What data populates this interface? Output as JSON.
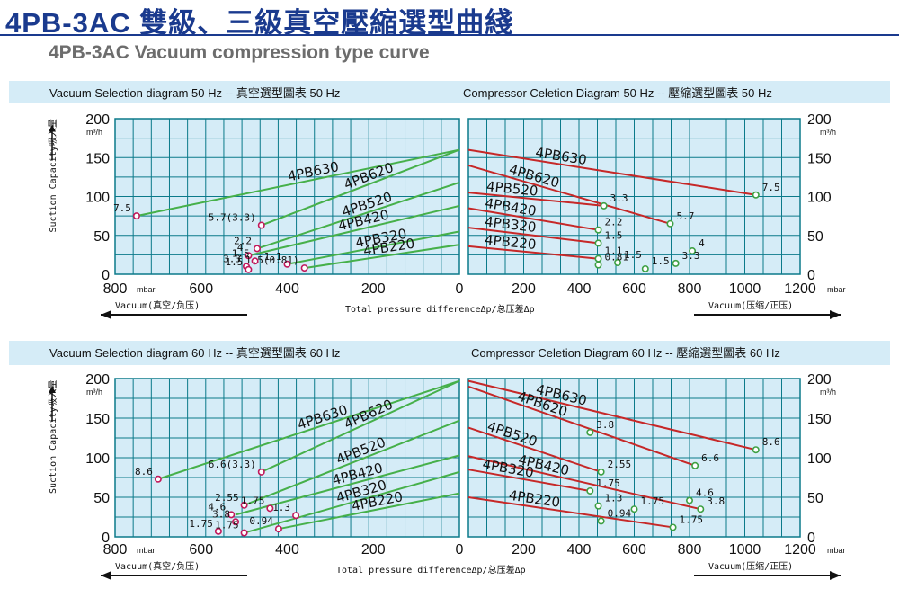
{
  "page": {
    "title": "4PB-3AC 雙級、三級真空壓縮選型曲綫",
    "subtitle": "4PB-3AC Vacuum compression type curve",
    "ylabel": "Suction Capacity吸入量",
    "xunit": "mbar",
    "yunit": "m³/h",
    "vacuum_label": "Vacuum(真空/负压)",
    "pressure_label": "Vacuum(压缩/正压)",
    "xaxis_label": "Total pressure differenceΔp/总压差Δp",
    "colors": {
      "accent": "#1a3a8e",
      "panel": "#d5ecf7",
      "grid": "#0b7a8a",
      "vacuum_curve": "#46b04a",
      "compress_curve": "#c62828",
      "vacuum_marker": "#c2185b",
      "compress_marker": "#3ea043"
    }
  },
  "chart_data": [
    {
      "type": "line",
      "title": "Vacuum Selection diagram 50 Hz -- 真空選型圖表 50 Hz",
      "xlabel": "Total pressure differenceΔp/总压差Δp",
      "ylabel": "Suction Capacity吸入量",
      "xlim": [
        800,
        0
      ],
      "ylim": [
        0,
        200
      ],
      "yticks": [
        0,
        50,
        100,
        150,
        200
      ],
      "xticks": [
        800,
        600,
        400,
        200,
        0
      ],
      "grid": true,
      "series": [
        {
          "name": "4PB630",
          "points": [
            [
              750,
              75
            ],
            [
              0,
              160
            ]
          ]
        },
        {
          "name": "4PB620",
          "points": [
            [
              460,
              63
            ],
            [
              0,
              160
            ]
          ]
        },
        {
          "name": "4PB520",
          "points": [
            [
              470,
              33
            ],
            [
              0,
              118
            ]
          ]
        },
        {
          "name": "4PB420",
          "points": [
            [
              490,
              24
            ],
            [
              0,
              88
            ]
          ]
        },
        {
          "name": "4PB320",
          "points": [
            [
              400,
              13
            ],
            [
              0,
              55
            ]
          ]
        },
        {
          "name": "4PB220",
          "points": [
            [
              360,
              8
            ],
            [
              0,
              38
            ]
          ]
        }
      ],
      "points": [
        {
          "x": 750,
          "y": 75,
          "label": "7.5"
        },
        {
          "x": 460,
          "y": 63,
          "label": "5.7(3.3)"
        },
        {
          "x": 470,
          "y": 33,
          "label": "2.2"
        },
        {
          "x": 490,
          "y": 24,
          "label": "4"
        },
        {
          "x": 475,
          "y": 17,
          "label": "1.5"
        },
        {
          "x": 400,
          "y": 13,
          "label": "1.1"
        },
        {
          "x": 495,
          "y": 10,
          "label": "3.3"
        },
        {
          "x": 360,
          "y": 8,
          "label": "1.5(0.81)"
        },
        {
          "x": 490,
          "y": 6,
          "label": "1.5"
        }
      ],
      "series_labels": [
        "4PB630",
        "4PB620",
        "4PB520",
        "4PB420",
        "4PB320",
        "4PB220"
      ]
    },
    {
      "type": "line",
      "title": "Compressor Celetion Diagram 50 Hz -- 壓縮選型圖表 50 Hz",
      "xlabel": "Vacuum(压缩/正压)",
      "xunit": "mbar",
      "xlim": [
        0,
        1200
      ],
      "ylim": [
        0,
        200
      ],
      "xticks": [
        0,
        200,
        400,
        600,
        800,
        1000,
        1200
      ],
      "yticks": [
        0,
        50,
        100,
        150,
        200
      ],
      "grid": true,
      "series": [
        {
          "name": "4PB630",
          "points": [
            [
              0,
              160
            ],
            [
              1040,
              102
            ]
          ]
        },
        {
          "name": "4PB620",
          "points": [
            [
              0,
              140
            ],
            [
              730,
              65
            ]
          ]
        },
        {
          "name": "4PB520",
          "points": [
            [
              0,
              105
            ],
            [
              490,
              88
            ]
          ]
        },
        {
          "name": "4PB420",
          "points": [
            [
              0,
              85
            ],
            [
              470,
              57
            ]
          ]
        },
        {
          "name": "4PB320",
          "points": [
            [
              0,
              60
            ],
            [
              470,
              40
            ]
          ]
        },
        {
          "name": "4PB220",
          "points": [
            [
              0,
              36
            ],
            [
              470,
              20
            ]
          ]
        }
      ],
      "points": [
        {
          "x": 1040,
          "y": 102,
          "label": "7.5"
        },
        {
          "x": 730,
          "y": 65,
          "label": "5.7"
        },
        {
          "x": 490,
          "y": 88,
          "label": "3.3"
        },
        {
          "x": 470,
          "y": 57,
          "label": "2.2"
        },
        {
          "x": 470,
          "y": 40,
          "label": "1.5"
        },
        {
          "x": 470,
          "y": 20,
          "label": "1.1"
        },
        {
          "x": 540,
          "y": 15,
          "label": "1.5"
        },
        {
          "x": 640,
          "y": 7,
          "label": "1.5"
        },
        {
          "x": 470,
          "y": 12,
          "label": "0.81"
        },
        {
          "x": 810,
          "y": 30,
          "label": "4"
        },
        {
          "x": 750,
          "y": 14,
          "label": "3.3"
        }
      ]
    },
    {
      "type": "line",
      "title": "Vacuum Selection diagram 60 Hz -- 真空選型圖表 60 Hz",
      "xlim": [
        800,
        0
      ],
      "ylim": [
        0,
        200
      ],
      "xticks": [
        800,
        600,
        400,
        200,
        0
      ],
      "yticks": [
        0,
        50,
        100,
        150,
        200
      ],
      "grid": true,
      "series": [
        {
          "name": "4PB630",
          "points": [
            [
              700,
              73
            ],
            [
              0,
              197
            ]
          ]
        },
        {
          "name": "4PB620",
          "points": [
            [
              460,
              82
            ],
            [
              0,
              197
            ]
          ]
        },
        {
          "name": "4PB520",
          "points": [
            [
              500,
              40
            ],
            [
              0,
              147
            ]
          ]
        },
        {
          "name": "4PB420",
          "points": [
            [
              520,
              28
            ],
            [
              0,
              103
            ]
          ]
        },
        {
          "name": "4PB320",
          "points": [
            [
              500,
              5
            ],
            [
              0,
              82
            ]
          ]
        },
        {
          "name": "4PB220",
          "points": [
            [
              420,
              10
            ],
            [
              0,
              55
            ]
          ]
        }
      ],
      "points": [
        {
          "x": 700,
          "y": 73,
          "label": "8.6"
        },
        {
          "x": 460,
          "y": 82,
          "label": "6.6(3.3)"
        },
        {
          "x": 500,
          "y": 40,
          "label": "2.55"
        },
        {
          "x": 530,
          "y": 28,
          "label": "4.6"
        },
        {
          "x": 520,
          "y": 19,
          "label": "3.8"
        },
        {
          "x": 440,
          "y": 36,
          "label": "1.75"
        },
        {
          "x": 380,
          "y": 27,
          "label": "1.3"
        },
        {
          "x": 560,
          "y": 7,
          "label": "1.75"
        },
        {
          "x": 500,
          "y": 5,
          "label": "1.75"
        },
        {
          "x": 420,
          "y": 10,
          "label": "0.94"
        }
      ],
      "series_labels": [
        "4PB630",
        "4PB620",
        "4PB520",
        "4PB420",
        "4PB320",
        "4PB220"
      ]
    },
    {
      "type": "line",
      "title": "Compressor Celetion Diagram 60 Hz -- 壓縮選型圖表 60 Hz",
      "xlabel": "Vacuum(压缩/正压)",
      "xunit": "mbar",
      "xlim": [
        0,
        1200
      ],
      "ylim": [
        0,
        200
      ],
      "xticks": [
        0,
        200,
        400,
        600,
        800,
        1000,
        1200
      ],
      "yticks": [
        0,
        50,
        100,
        150,
        200
      ],
      "grid": true,
      "series": [
        {
          "name": "4PB630",
          "points": [
            [
              0,
              197
            ],
            [
              1040,
              110
            ]
          ]
        },
        {
          "name": "4PB620",
          "points": [
            [
              0,
              190
            ],
            [
              820,
              90
            ]
          ]
        },
        {
          "name": "4PB520",
          "points": [
            [
              0,
              138
            ],
            [
              480,
              82
            ]
          ]
        },
        {
          "name": "4PB420",
          "points": [
            [
              0,
              102
            ],
            [
              840,
              35
            ]
          ]
        },
        {
          "name": "4PB320",
          "points": [
            [
              0,
              85
            ],
            [
              440,
              58
            ]
          ]
        },
        {
          "name": "4PB220",
          "points": [
            [
              0,
              50
            ],
            [
              740,
              12
            ]
          ]
        }
      ],
      "points": [
        {
          "x": 1040,
          "y": 110,
          "label": "8.6"
        },
        {
          "x": 440,
          "y": 132,
          "label": "3.8"
        },
        {
          "x": 820,
          "y": 90,
          "label": "6.6"
        },
        {
          "x": 480,
          "y": 82,
          "label": "2.55"
        },
        {
          "x": 440,
          "y": 58,
          "label": "1.75"
        },
        {
          "x": 800,
          "y": 46,
          "label": "4.6"
        },
        {
          "x": 470,
          "y": 39,
          "label": "1.3"
        },
        {
          "x": 600,
          "y": 35,
          "label": "1.75"
        },
        {
          "x": 840,
          "y": 35,
          "label": "3.8"
        },
        {
          "x": 480,
          "y": 20,
          "label": "0.94"
        },
        {
          "x": 740,
          "y": 12,
          "label": "1.75"
        }
      ]
    }
  ]
}
